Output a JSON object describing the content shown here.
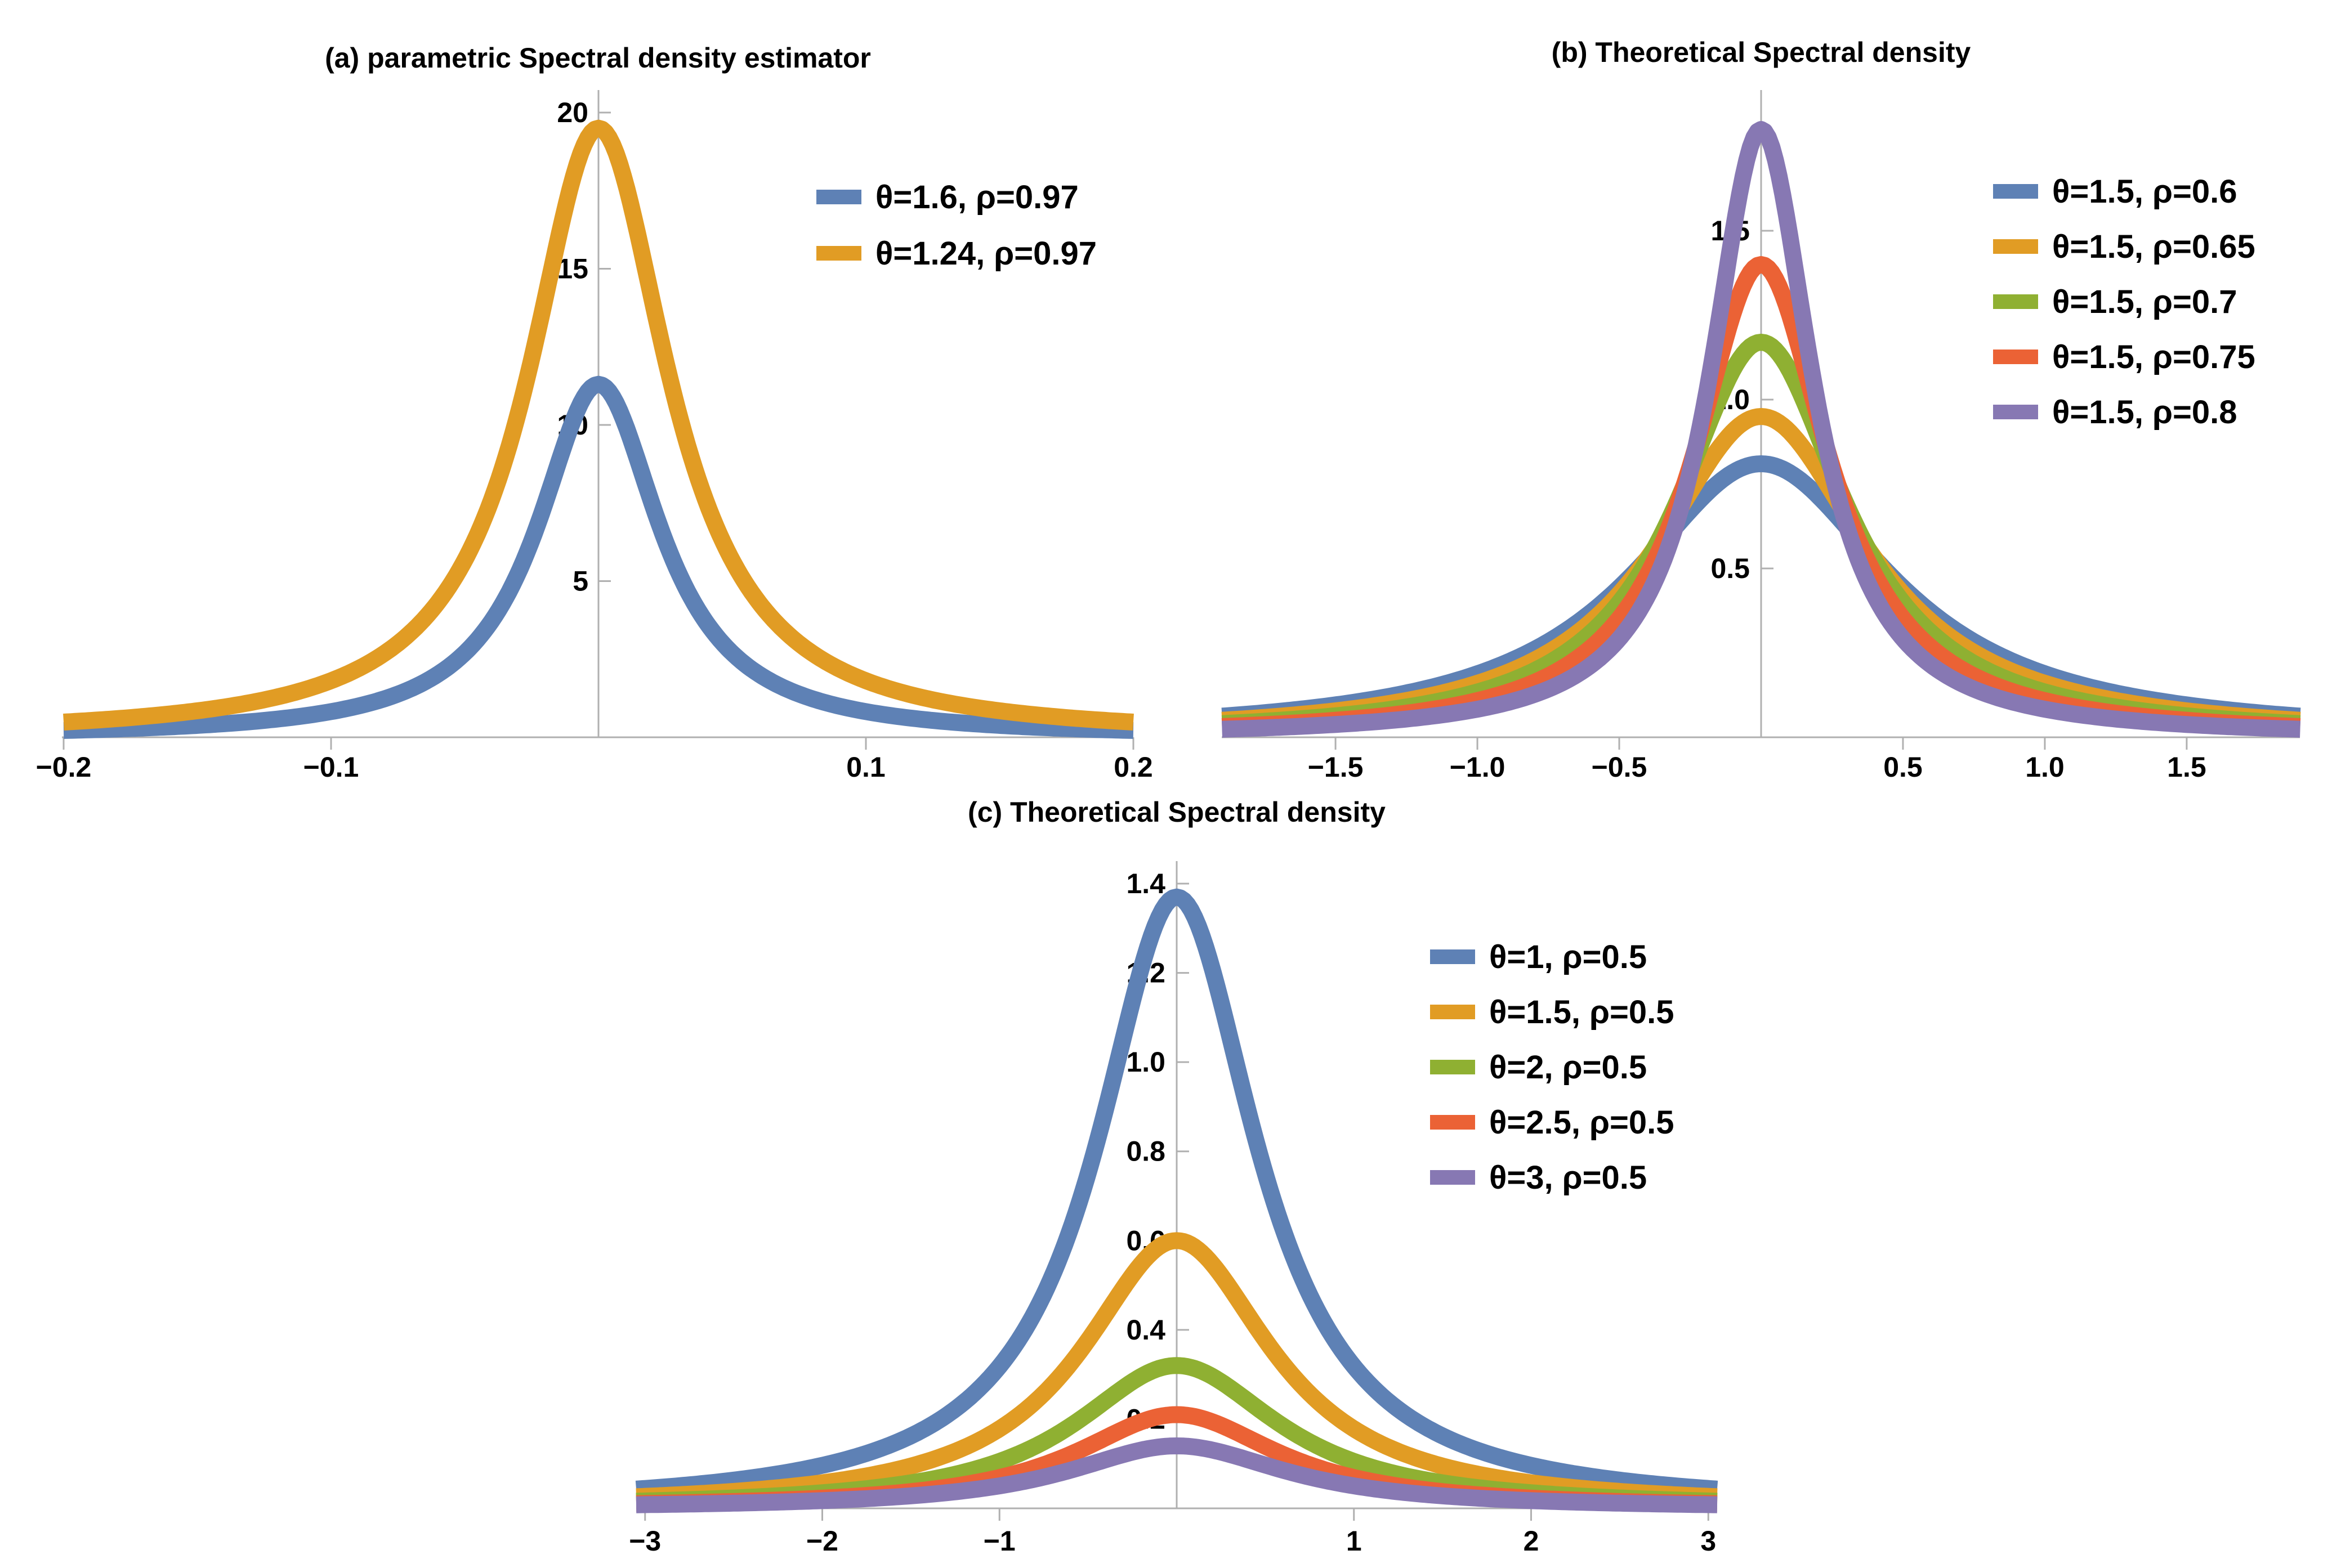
{
  "chart_data": [
    {
      "id": "a",
      "type": "line",
      "title": "(a) parametric Spectral density estimator",
      "xlabel": "",
      "ylabel": "",
      "xlim": [
        -0.2,
        0.2
      ],
      "ylim": [
        0,
        20
      ],
      "x_ticks": [
        -0.2,
        -0.1,
        0.1,
        0.2
      ],
      "x_tick_labels": [
        "−0.2",
        "−0.1",
        "0.1",
        "0.2"
      ],
      "y_ticks": [
        5,
        10,
        15,
        20
      ],
      "y_tick_labels": [
        "5",
        "10",
        "15",
        "20"
      ],
      "legend_position": "top-right",
      "series": [
        {
          "name": "θ=1.6, ρ=0.97",
          "color": "#5E81B5",
          "peak": 11.3,
          "halfwidth": 0.028
        },
        {
          "name": "θ=1.24, ρ=0.97",
          "color": "#E19C24",
          "peak": 19.5,
          "halfwidth": 0.032
        }
      ]
    },
    {
      "id": "b",
      "type": "line",
      "title": "(b) Theoretical Spectral density",
      "xlabel": "",
      "ylabel": "",
      "xlim": [
        -1.9,
        1.9
      ],
      "ylim": [
        0,
        1.85
      ],
      "x_ticks": [
        -1.5,
        -1.0,
        -0.5,
        0.5,
        1.0,
        1.5
      ],
      "x_tick_labels": [
        "−1.5",
        "−1.0",
        "−0.5",
        "0.5",
        "1.0",
        "1.5"
      ],
      "y_ticks": [
        0.5,
        1.0,
        1.5
      ],
      "y_tick_labels": [
        "0.5",
        "1.0",
        "1.5"
      ],
      "legend_position": "top-right",
      "series": [
        {
          "name": "θ=1.5, ρ=0.6",
          "color": "#5E81B5",
          "peak": 0.81,
          "halfwidth": 0.55
        },
        {
          "name": "θ=1.5, ρ=0.65",
          "color": "#E19C24",
          "peak": 0.95,
          "halfwidth": 0.45
        },
        {
          "name": "θ=1.5, ρ=0.7",
          "color": "#8FB032",
          "peak": 1.17,
          "halfwidth": 0.36
        },
        {
          "name": "θ=1.5, ρ=0.75",
          "color": "#EB6235",
          "peak": 1.4,
          "halfwidth": 0.29
        },
        {
          "name": "θ=1.5, ρ=0.8",
          "color": "#8778B3",
          "peak": 1.8,
          "halfwidth": 0.22
        }
      ]
    },
    {
      "id": "c",
      "type": "line",
      "title": "(c) Theoretical Spectral density",
      "xlabel": "",
      "ylabel": "",
      "xlim": [
        -3.05,
        3.05
      ],
      "ylim": [
        0,
        1.4
      ],
      "x_ticks": [
        -3,
        -2,
        -1,
        1,
        2,
        3
      ],
      "x_tick_labels": [
        "−3",
        "−2",
        "−1",
        "1",
        "2",
        "3"
      ],
      "y_ticks": [
        0.2,
        0.4,
        0.6,
        0.8,
        1.0,
        1.2,
        1.4
      ],
      "y_tick_labels": [
        "0.2",
        "0.4",
        "0.6",
        "0.8",
        "1.0",
        "1.2",
        "1.4"
      ],
      "legend_position": "top-right",
      "series": [
        {
          "name": "θ=1, ρ=0.5",
          "color": "#5E81B5",
          "peak": 1.37,
          "halfwidth": 0.55
        },
        {
          "name": "θ=1.5, ρ=0.5",
          "color": "#E19C24",
          "peak": 0.6,
          "halfwidth": 0.65
        },
        {
          "name": "θ=2, ρ=0.5",
          "color": "#8FB032",
          "peak": 0.32,
          "halfwidth": 0.7
        },
        {
          "name": "θ=2.5, ρ=0.5",
          "color": "#EB6235",
          "peak": 0.21,
          "halfwidth": 0.7
        },
        {
          "name": "θ=3, ρ=0.5",
          "color": "#8778B3",
          "peak": 0.14,
          "halfwidth": 0.75
        }
      ]
    }
  ]
}
